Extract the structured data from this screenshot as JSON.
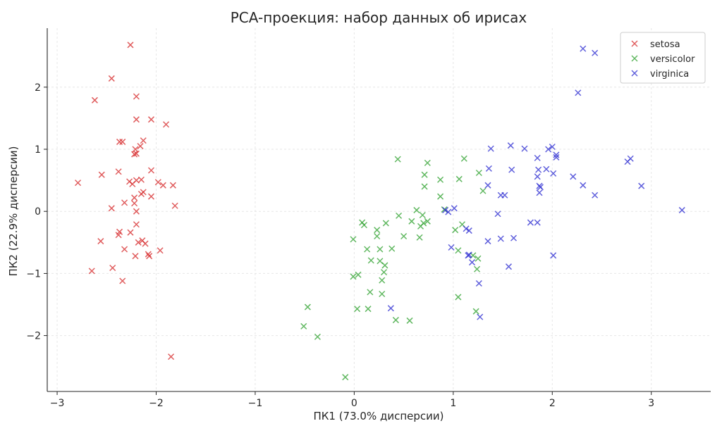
{
  "chart_data": {
    "type": "scatter",
    "title": "PCA-проекция: набор данных об ирисах",
    "xlabel": "ПК1 (73.0% дисперсии)",
    "ylabel": "ПК2 (22.9% дисперсии)",
    "xlim": [
      -3.1,
      3.6
    ],
    "ylim": [
      -2.9,
      2.95
    ],
    "xticks": [
      -3,
      -2,
      -1,
      0,
      1,
      2,
      3
    ],
    "xtick_labels": [
      "−3",
      "−2",
      "−1",
      "0",
      "1",
      "2",
      "3"
    ],
    "yticks": [
      -2,
      -1,
      0,
      1,
      2
    ],
    "ytick_labels": [
      "−2",
      "−1",
      "0",
      "1",
      "2"
    ],
    "grid": true,
    "legend_position": "top-right",
    "marker": "x",
    "series": [
      {
        "name": "setosa",
        "color": "#d62728",
        "points": [
          [
            -2.26,
            2.68
          ],
          [
            -2.45,
            2.14
          ],
          [
            -2.2,
            1.85
          ],
          [
            -2.62,
            1.79
          ],
          [
            -2.05,
            1.48
          ],
          [
            -2.2,
            1.48
          ],
          [
            -1.9,
            1.4
          ],
          [
            -2.37,
            1.12
          ],
          [
            -2.34,
            1.12
          ],
          [
            -2.13,
            1.14
          ],
          [
            -2.16,
            1.05
          ],
          [
            -2.21,
            1.0
          ],
          [
            -2.2,
            0.93
          ],
          [
            -2.22,
            0.92
          ],
          [
            -2.05,
            0.66
          ],
          [
            -2.38,
            0.64
          ],
          [
            -2.55,
            0.59
          ],
          [
            -2.2,
            0.5
          ],
          [
            -2.15,
            0.51
          ],
          [
            -2.27,
            0.48
          ],
          [
            -2.24,
            0.44
          ],
          [
            -2.79,
            0.46
          ],
          [
            -1.98,
            0.47
          ],
          [
            -1.93,
            0.42
          ],
          [
            -1.83,
            0.42
          ],
          [
            -2.13,
            0.31
          ],
          [
            -2.15,
            0.28
          ],
          [
            -2.22,
            0.22
          ],
          [
            -2.05,
            0.24
          ],
          [
            -2.32,
            0.14
          ],
          [
            -2.22,
            0.13
          ],
          [
            -2.45,
            0.05
          ],
          [
            -1.81,
            0.09
          ],
          [
            -2.2,
            0.0
          ],
          [
            -2.2,
            -0.21
          ],
          [
            -2.26,
            -0.34
          ],
          [
            -2.37,
            -0.33
          ],
          [
            -2.38,
            -0.38
          ],
          [
            -2.56,
            -0.48
          ],
          [
            -2.14,
            -0.47
          ],
          [
            -2.18,
            -0.5
          ],
          [
            -2.11,
            -0.52
          ],
          [
            -2.32,
            -0.61
          ],
          [
            -1.96,
            -0.63
          ],
          [
            -2.08,
            -0.69
          ],
          [
            -2.07,
            -0.72
          ],
          [
            -2.21,
            -0.72
          ],
          [
            -2.44,
            -0.91
          ],
          [
            -2.65,
            -0.96
          ],
          [
            -2.34,
            -1.12
          ],
          [
            -1.85,
            -2.34
          ]
        ]
      },
      {
        "name": "versicolor",
        "color": "#2ca02c",
        "points": [
          [
            0.44,
            0.84
          ],
          [
            1.11,
            0.85
          ],
          [
            0.74,
            0.78
          ],
          [
            1.26,
            0.62
          ],
          [
            0.71,
            0.59
          ],
          [
            1.06,
            0.52
          ],
          [
            0.87,
            0.51
          ],
          [
            0.71,
            0.4
          ],
          [
            1.3,
            0.33
          ],
          [
            0.87,
            0.24
          ],
          [
            0.63,
            0.02
          ],
          [
            0.91,
            0.03
          ],
          [
            0.69,
            -0.06
          ],
          [
            0.45,
            -0.07
          ],
          [
            0.74,
            -0.16
          ],
          [
            0.58,
            -0.16
          ],
          [
            0.32,
            -0.19
          ],
          [
            0.08,
            -0.18
          ],
          [
            0.1,
            -0.22
          ],
          [
            0.7,
            -0.19
          ],
          [
            1.09,
            -0.21
          ],
          [
            0.67,
            -0.24
          ],
          [
            0.23,
            -0.3
          ],
          [
            1.02,
            -0.3
          ],
          [
            0.23,
            -0.4
          ],
          [
            0.5,
            -0.4
          ],
          [
            0.66,
            -0.42
          ],
          [
            -0.01,
            -0.45
          ],
          [
            0.38,
            -0.6
          ],
          [
            1.05,
            -0.63
          ],
          [
            0.26,
            -0.61
          ],
          [
            0.13,
            -0.61
          ],
          [
            1.2,
            -0.71
          ],
          [
            1.25,
            -0.76
          ],
          [
            0.17,
            -0.79
          ],
          [
            0.26,
            -0.8
          ],
          [
            0.31,
            -0.87
          ],
          [
            1.24,
            -0.93
          ],
          [
            0.3,
            -0.98
          ],
          [
            0.04,
            -1.02
          ],
          [
            -0.01,
            -1.05
          ],
          [
            0.28,
            -1.11
          ],
          [
            1.05,
            -1.38
          ],
          [
            0.16,
            -1.3
          ],
          [
            0.28,
            -1.33
          ],
          [
            -0.47,
            -1.54
          ],
          [
            0.03,
            -1.57
          ],
          [
            0.14,
            -1.57
          ],
          [
            1.23,
            -1.61
          ],
          [
            0.42,
            -1.75
          ],
          [
            0.56,
            -1.76
          ],
          [
            -0.51,
            -1.85
          ],
          [
            -0.37,
            -2.02
          ],
          [
            -0.09,
            -2.67
          ]
        ]
      },
      {
        "name": "virginica",
        "color": "#2a2ad0",
        "points": [
          [
            2.31,
            2.62
          ],
          [
            2.43,
            2.55
          ],
          [
            2.26,
            1.91
          ],
          [
            1.38,
            1.01
          ],
          [
            1.58,
            1.06
          ],
          [
            1.72,
            1.01
          ],
          [
            1.96,
            1.0
          ],
          [
            2.0,
            1.04
          ],
          [
            2.04,
            0.91
          ],
          [
            2.04,
            0.87
          ],
          [
            2.79,
            0.85
          ],
          [
            2.76,
            0.8
          ],
          [
            1.85,
            0.86
          ],
          [
            1.36,
            0.69
          ],
          [
            1.59,
            0.67
          ],
          [
            1.86,
            0.67
          ],
          [
            1.94,
            0.68
          ],
          [
            1.85,
            0.56
          ],
          [
            2.01,
            0.61
          ],
          [
            2.21,
            0.56
          ],
          [
            1.35,
            0.42
          ],
          [
            1.87,
            0.41
          ],
          [
            1.88,
            0.39
          ],
          [
            2.31,
            0.42
          ],
          [
            2.9,
            0.41
          ],
          [
            1.87,
            0.3
          ],
          [
            1.52,
            0.26
          ],
          [
            1.48,
            0.26
          ],
          [
            2.43,
            0.26
          ],
          [
            3.31,
            0.02
          ],
          [
            0.92,
            0.02
          ],
          [
            0.95,
            -0.01
          ],
          [
            1.01,
            0.05
          ],
          [
            1.45,
            -0.04
          ],
          [
            1.13,
            -0.28
          ],
          [
            1.16,
            -0.31
          ],
          [
            1.78,
            -0.18
          ],
          [
            1.85,
            -0.18
          ],
          [
            1.48,
            -0.44
          ],
          [
            1.61,
            -0.43
          ],
          [
            1.35,
            -0.48
          ],
          [
            0.98,
            -0.58
          ],
          [
            1.16,
            -0.7
          ],
          [
            1.15,
            -0.71
          ],
          [
            1.19,
            -0.82
          ],
          [
            2.01,
            -0.71
          ],
          [
            1.56,
            -0.89
          ],
          [
            1.26,
            -1.16
          ],
          [
            0.37,
            -1.56
          ],
          [
            1.27,
            -1.7
          ]
        ]
      }
    ]
  }
}
